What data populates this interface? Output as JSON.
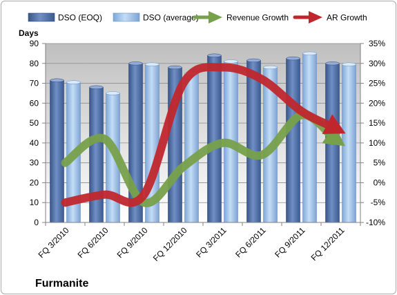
{
  "chart_data": {
    "type": "bar",
    "company_label": "Furmanite",
    "y_left_title": "Days",
    "categories": [
      "FQ 3/2010",
      "FQ 6/2010",
      "FQ 9/2010",
      "FQ 12/2010",
      "FQ 3/2011",
      "FQ 6/2011",
      "FQ 9/2011",
      "FQ 12/2011"
    ],
    "y_left": {
      "min": 0,
      "max": 90,
      "step": 10,
      "ticks": [
        "0",
        "10",
        "20",
        "30",
        "40",
        "50",
        "60",
        "70",
        "80",
        "90"
      ]
    },
    "y_right": {
      "min": -10,
      "max": 35,
      "step": 5,
      "ticks": [
        "-10%",
        "-5%",
        "0%",
        "5%",
        "10%",
        "15%",
        "20%",
        "25%",
        "30%",
        "35%"
      ]
    },
    "series": [
      {
        "name": "DSO (EOQ)",
        "kind": "bar",
        "axis": "left",
        "color": "#4f6fa8",
        "values": [
          71.5,
          68,
          80,
          78,
          84,
          81.5,
          82.5,
          80
        ]
      },
      {
        "name": "DSO (average)",
        "kind": "bar",
        "axis": "left",
        "color": "#9dc3ec",
        "values": [
          70.5,
          65,
          79.5,
          75,
          81,
          78,
          85,
          79.5
        ]
      },
      {
        "name": "Revenue Growth",
        "kind": "arrow-line",
        "axis": "right",
        "color": "#77a04a",
        "values": [
          5,
          11,
          -5,
          4,
          10,
          7,
          17,
          10
        ]
      },
      {
        "name": "AR Growth",
        "kind": "arrow-line",
        "axis": "right",
        "color": "#c0272d",
        "values": [
          -5,
          -3,
          -3,
          25,
          29,
          26,
          18,
          13
        ]
      }
    ],
    "legend_position": "top",
    "grid": true
  }
}
